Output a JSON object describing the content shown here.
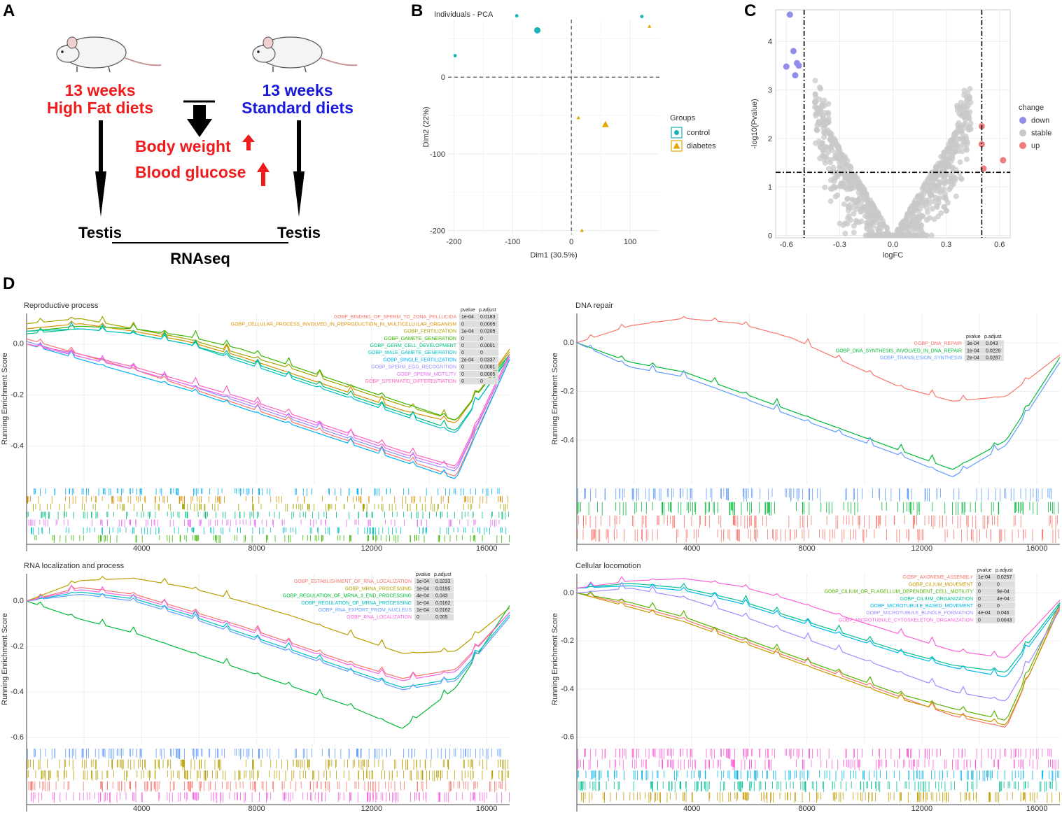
{
  "panels": {
    "a": "A",
    "b": "B",
    "c": "C",
    "d": "D"
  },
  "panelA": {
    "left_weeks": "13 weeks",
    "left_diet": "High Fat diets",
    "right_weeks": "13 weeks",
    "right_diet": "Standard diets",
    "body_weight": "Body weight",
    "blood_glucose": "Blood glucose",
    "left_tissue": "Testis",
    "right_tissue": "Testis",
    "method": "RNAseq",
    "colors": {
      "red": "#ee1c1c",
      "blue": "#1a1adc"
    }
  },
  "chart_data": [
    {
      "id": "pca",
      "type": "scatter",
      "title": "Individuals - PCA",
      "xlabel": "Dim1 (30.5%)",
      "ylabel": "Dim2 (22%)",
      "xlim": [
        -210,
        150
      ],
      "ylim": [
        -205,
        75
      ],
      "xticks": [
        -200,
        -100,
        0,
        100
      ],
      "yticks": [
        0,
        -100,
        -200
      ],
      "legend_title": "Groups",
      "series": [
        {
          "name": "control",
          "color": "#1ab0b8",
          "shape": "circle",
          "points": [
            [
              -198,
              28
            ],
            [
              -93,
              80
            ],
            [
              120,
              79
            ],
            [
              -58,
              61
            ]
          ]
        },
        {
          "name": "diabetes",
          "color": "#e0a800",
          "shape": "triangle",
          "points": [
            [
              133,
              66
            ],
            [
              12,
              -53
            ],
            [
              18,
              -200
            ],
            [
              58,
              -62
            ]
          ]
        }
      ],
      "centroids": [
        {
          "series": "control",
          "x": -58,
          "y": 61
        },
        {
          "series": "diabetes",
          "x": 58,
          "y": -62
        }
      ]
    },
    {
      "id": "volcano",
      "type": "scatter",
      "xlabel": "logFC",
      "ylabel": "-log10(Pvalue)",
      "xlim": [
        -0.66,
        0.66
      ],
      "ylim": [
        -0.05,
        4.65
      ],
      "xticks": [
        -0.6,
        -0.3,
        0.0,
        0.3,
        0.6
      ],
      "yticks": [
        0,
        1,
        2,
        3,
        4
      ],
      "thresholds": {
        "x": [
          -0.5,
          0.5
        ],
        "y": 1.3
      },
      "legend_title": "change",
      "series": [
        {
          "name": "down",
          "color": "#8f8de8",
          "points": [
            [
              -0.58,
              4.55
            ],
            [
              -0.56,
              3.8
            ],
            [
              -0.54,
              3.55
            ],
            [
              -0.53,
              3.5
            ],
            [
              -0.55,
              3.3
            ],
            [
              -0.6,
              3.48
            ]
          ]
        },
        {
          "name": "stable",
          "color": "#c8c8c8",
          "points": []
        },
        {
          "name": "up",
          "color": "#ef7c7c",
          "points": [
            [
              0.5,
              2.25
            ],
            [
              0.5,
              1.88
            ],
            [
              0.51,
              1.38
            ],
            [
              0.62,
              1.55
            ]
          ]
        }
      ]
    },
    {
      "id": "gsea-reproductive",
      "type": "line",
      "title": "Reproductive process",
      "ylabel": "Running Enrichment Score",
      "xlim": [
        0,
        16800
      ],
      "ylim": [
        -0.55,
        0.12
      ],
      "xticks": [
        4000,
        8000,
        12000,
        16000
      ],
      "yticks": [
        0.0,
        -0.2,
        -0.4
      ],
      "table_headers": [
        "pvalue",
        "p.adjust"
      ],
      "series": [
        {
          "name": "GOBP_BINDING_OF_SPERM_TO_ZONA_PELLUCIDA",
          "color": "#f8766d",
          "pvalue": "1e-04",
          "padj": "0.0183",
          "y": [
            0.02,
            -0.04,
            -0.1,
            -0.17,
            -0.24,
            -0.31,
            -0.38,
            -0.45,
            -0.52,
            -0.06
          ]
        },
        {
          "name": "GOBP_CELLULAR_PROCESS_INVOLVED_IN_REPRODUCTION_IN_MULTICELLULAR_ORGANISM",
          "color": "#d89000",
          "pvalue": "0",
          "padj": "0.0005",
          "y": [
            0.06,
            0.08,
            0.05,
            0.01,
            -0.05,
            -0.12,
            -0.19,
            -0.26,
            -0.31,
            -0.02
          ]
        },
        {
          "name": "GOBP_FERTILIZATION",
          "color": "#a3a500",
          "pvalue": "1e-04",
          "padj": "0.0205",
          "y": [
            0.08,
            0.1,
            0.06,
            0.02,
            -0.04,
            -0.1,
            -0.17,
            -0.24,
            -0.3,
            -0.03
          ]
        },
        {
          "name": "GOBP_GAMETE_GENERATION",
          "color": "#39b600",
          "pvalue": "0",
          "padj": "0",
          "y": [
            0.05,
            0.07,
            0.06,
            0.03,
            -0.02,
            -0.09,
            -0.16,
            -0.23,
            -0.3,
            -0.04
          ]
        },
        {
          "name": "GOBP_GERM_CELL_DEVELOPMENT",
          "color": "#00bf7d",
          "pvalue": "0",
          "padj": "0.0001",
          "y": [
            0.04,
            0.06,
            0.04,
            0.0,
            -0.06,
            -0.13,
            -0.2,
            -0.27,
            -0.34,
            -0.05
          ]
        },
        {
          "name": "GOBP_MALE_GAMETE_GENERATION",
          "color": "#00bfc4",
          "pvalue": "0",
          "padj": "0",
          "y": [
            0.05,
            0.06,
            0.04,
            0.0,
            -0.07,
            -0.14,
            -0.21,
            -0.28,
            -0.35,
            -0.04
          ]
        },
        {
          "name": "GOBP_SINGLE_FERTILIZATION",
          "color": "#00b0f6",
          "pvalue": "2e-04",
          "padj": "0.0337",
          "y": [
            0.0,
            -0.06,
            -0.12,
            -0.18,
            -0.25,
            -0.32,
            -0.39,
            -0.46,
            -0.53,
            -0.06
          ]
        },
        {
          "name": "GOBP_SPERM_EGG_RECOGNITION",
          "color": "#9590ff",
          "pvalue": "0",
          "padj": "0.0081",
          "y": [
            0.01,
            -0.05,
            -0.1,
            -0.16,
            -0.23,
            -0.3,
            -0.37,
            -0.44,
            -0.5,
            -0.05
          ]
        },
        {
          "name": "GOBP_SPERM_MOTILITY",
          "color": "#e76bf3",
          "pvalue": "0",
          "padj": "0.0005",
          "y": [
            0.0,
            -0.05,
            -0.1,
            -0.16,
            -0.22,
            -0.29,
            -0.36,
            -0.43,
            -0.49,
            -0.05
          ]
        },
        {
          "name": "GOBP_SPERMATID_DIFFERENTIATION",
          "color": "#ff62bc",
          "pvalue": "0",
          "padj": "0",
          "y": [
            0.0,
            -0.04,
            -0.09,
            -0.15,
            -0.21,
            -0.28,
            -0.35,
            -0.42,
            -0.48,
            -0.04
          ]
        }
      ]
    },
    {
      "id": "gsea-dna-repair",
      "type": "line",
      "title": "DNA repair",
      "ylabel": "Running Enrichment Score",
      "xlim": [
        0,
        16800
      ],
      "ylim": [
        -0.58,
        0.12
      ],
      "xticks": [
        4000,
        8000,
        12000,
        16000
      ],
      "yticks": [
        0.0,
        -0.2,
        -0.4
      ],
      "table_headers": [
        "pvalue",
        "p.adjust"
      ],
      "series": [
        {
          "name": "GOBP_DNA_REPAIR",
          "color": "#f8766d",
          "pvalue": "3e-04",
          "padj": "0.043",
          "y": [
            0.0,
            0.07,
            0.1,
            0.08,
            0.02,
            -0.08,
            -0.18,
            -0.24,
            -0.22,
            -0.05
          ]
        },
        {
          "name": "GOBP_DNA_SYNTHESIS_INVOLVED_IN_DNA_REPAIR",
          "color": "#00ba38",
          "pvalue": "1e-04",
          "padj": "0.0229",
          "y": [
            0.0,
            -0.08,
            -0.12,
            -0.2,
            -0.28,
            -0.36,
            -0.44,
            -0.52,
            -0.4,
            -0.06
          ]
        },
        {
          "name": "GOBP_TRANSLESION_SYNTHESIS",
          "color": "#619cff",
          "pvalue": "2e-04",
          "padj": "0.0287",
          "y": [
            0.0,
            -0.1,
            -0.14,
            -0.22,
            -0.3,
            -0.38,
            -0.46,
            -0.55,
            -0.42,
            -0.08
          ]
        }
      ]
    },
    {
      "id": "gsea-rna",
      "type": "line",
      "title": "RNA localization and process",
      "ylabel": "Running Enrichment Score",
      "xlim": [
        0,
        16800
      ],
      "ylim": [
        -0.63,
        0.12
      ],
      "xticks": [
        4000,
        8000,
        12000,
        16000
      ],
      "yticks": [
        0.0,
        -0.2,
        -0.4,
        -0.6
      ],
      "table_headers": [
        "pvalue",
        "p.adjust"
      ],
      "series": [
        {
          "name": "GOBP_ESTABLISHMENT_OF_RNA_LOCALIZATION",
          "color": "#f8766d",
          "pvalue": "1e-04",
          "padj": "0.0233",
          "y": [
            0.0,
            0.06,
            0.03,
            -0.04,
            -0.11,
            -0.19,
            -0.27,
            -0.34,
            -0.3,
            -0.05
          ]
        },
        {
          "name": "GOBP_MRNA_PROCESSING",
          "color": "#b79f00",
          "pvalue": "1e-04",
          "padj": "0.0195",
          "y": [
            0.0,
            0.09,
            0.1,
            0.06,
            0.0,
            -0.07,
            -0.15,
            -0.23,
            -0.22,
            -0.03
          ]
        },
        {
          "name": "GOBP_REGULATION_OF_MRNA_3_END_PROCESSING",
          "color": "#00ba38",
          "pvalue": "4e-04",
          "padj": "0.043",
          "y": [
            0.0,
            -0.08,
            -0.14,
            -0.22,
            -0.3,
            -0.38,
            -0.46,
            -0.56,
            -0.38,
            -0.02
          ]
        },
        {
          "name": "GOBP_REGULATION_OF_MRNA_PROCESSING",
          "color": "#00bfc4",
          "pvalue": "1e-04",
          "padj": "0.0162",
          "y": [
            0.0,
            0.04,
            0.01,
            -0.06,
            -0.14,
            -0.22,
            -0.3,
            -0.38,
            -0.34,
            -0.06
          ]
        },
        {
          "name": "GOBP_RNA_EXPORT_FROM_NUCLEUS",
          "color": "#619cff",
          "pvalue": "1e-04",
          "padj": "0.0162",
          "y": [
            0.0,
            0.03,
            0.0,
            -0.07,
            -0.15,
            -0.23,
            -0.31,
            -0.39,
            -0.35,
            -0.07
          ]
        },
        {
          "name": "GOBP_RNA_LOCALIZATION",
          "color": "#f564e3",
          "pvalue": "0",
          "padj": "0.005",
          "y": [
            0.0,
            0.05,
            0.02,
            -0.05,
            -0.12,
            -0.2,
            -0.28,
            -0.35,
            -0.31,
            -0.05
          ]
        }
      ]
    },
    {
      "id": "gsea-locomotion",
      "type": "line",
      "title": "Cellular locomotion",
      "ylabel": "Running Enrichment Score",
      "xlim": [
        0,
        16800
      ],
      "ylim": [
        -0.63,
        0.08
      ],
      "xticks": [
        4000,
        8000,
        12000,
        16000
      ],
      "yticks": [
        0.0,
        -0.2,
        -0.4,
        -0.6
      ],
      "table_headers": [
        "pvalue",
        "p.adjust"
      ],
      "series": [
        {
          "name": "GOBP_AXONEME_ASSEMBLY",
          "color": "#f8766d",
          "pvalue": "1e-04",
          "padj": "0.0257",
          "y": [
            0.0,
            -0.05,
            -0.11,
            -0.19,
            -0.27,
            -0.35,
            -0.43,
            -0.51,
            -0.56,
            -0.05
          ]
        },
        {
          "name": "GOBP_CILIUM_MOVEMENT",
          "color": "#c49a00",
          "pvalue": "0",
          "padj": "0",
          "y": [
            0.0,
            -0.06,
            -0.12,
            -0.2,
            -0.28,
            -0.36,
            -0.44,
            -0.5,
            -0.55,
            -0.06
          ]
        },
        {
          "name": "GOBP_CILIUM_OR_FLAGELLUM_DEPENDENT_CELL_MOTILITY",
          "color": "#53b400",
          "pvalue": "0",
          "padj": "9e-04",
          "y": [
            0.0,
            -0.04,
            -0.1,
            -0.18,
            -0.26,
            -0.34,
            -0.42,
            -0.48,
            -0.53,
            -0.04
          ]
        },
        {
          "name": "GOBP_CILIUM_ORGANIZATION",
          "color": "#00c094",
          "pvalue": "0",
          "padj": "4e-04",
          "y": [
            0.02,
            0.04,
            0.02,
            -0.03,
            -0.1,
            -0.17,
            -0.24,
            -0.3,
            -0.33,
            -0.04
          ]
        },
        {
          "name": "GOBP_MICROTUBULE_BASED_MOVEMENT",
          "color": "#00b6eb",
          "pvalue": "0",
          "padj": "0",
          "y": [
            0.02,
            0.03,
            0.01,
            -0.04,
            -0.11,
            -0.18,
            -0.25,
            -0.31,
            -0.35,
            -0.05
          ]
        },
        {
          "name": "GOBP_MICROTUBULE_BUNDLE_FORMATION",
          "color": "#a58aff",
          "pvalue": "4e-04",
          "padj": "0.046",
          "y": [
            0.0,
            0.02,
            -0.02,
            -0.09,
            -0.17,
            -0.25,
            -0.33,
            -0.41,
            -0.45,
            -0.07
          ]
        },
        {
          "name": "GOBP_MICROTUBULE_CYTOSKELETON_ORGANIZATION",
          "color": "#fb61d7",
          "pvalue": "0",
          "padj": "0.0043",
          "y": [
            0.02,
            0.05,
            0.06,
            0.03,
            -0.03,
            -0.1,
            -0.17,
            -0.24,
            -0.27,
            -0.03
          ]
        }
      ]
    }
  ]
}
